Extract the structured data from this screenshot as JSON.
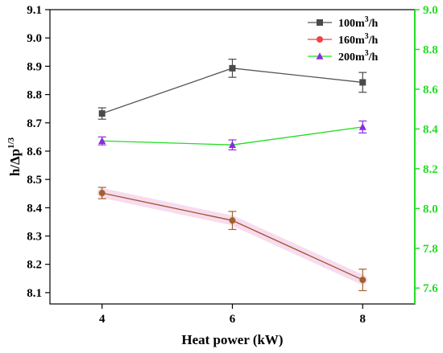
{
  "chart_data": {
    "type": "line",
    "xlabel": "Heat power (kW)",
    "ylabel_left": {
      "base": "h/Δp",
      "sup": "1/3"
    },
    "ylabel_right": "",
    "x": [
      4,
      6,
      8
    ],
    "x_ticks": [
      "4",
      "6",
      "8"
    ],
    "xlim": [
      3.2,
      8.8
    ],
    "y_left": {
      "lim": [
        8.06,
        9.1
      ],
      "ticks": [
        "8.1",
        "8.2",
        "8.3",
        "8.4",
        "8.5",
        "8.6",
        "8.7",
        "8.8",
        "8.9",
        "9.0",
        "9.1"
      ]
    },
    "y_right": {
      "lim": [
        7.52,
        9.0
      ],
      "ticks": [
        "7.6",
        "7.8",
        "8.0",
        "8.2",
        "8.4",
        "8.6",
        "8.8",
        "9.0"
      ],
      "color": "#22dd22"
    },
    "series": [
      {
        "name": "100m3/h",
        "legend_base": "100m",
        "legend_sup": "3",
        "legend_tail": "/h",
        "axis": "left",
        "marker": "square",
        "line_color": "#555555",
        "marker_color": "#4a4a4a",
        "values": [
          8.733,
          8.893,
          8.843
        ],
        "errors": [
          0.02,
          0.032,
          0.035
        ]
      },
      {
        "name": "160m3/h",
        "legend_base": "160m",
        "legend_sup": "3",
        "legend_tail": "/h",
        "axis": "left",
        "marker": "circle",
        "line_color": "#ee4444",
        "marker_color": "#ee4444",
        "plot_line_color": "#a0522d",
        "plot_marker_color": "#a0622d",
        "values": [
          8.452,
          8.355,
          8.145
        ],
        "errors": [
          0.02,
          0.032,
          0.038
        ]
      },
      {
        "name": "200m3/h",
        "legend_base": "200m",
        "legend_sup": "3",
        "legend_tail": "/h",
        "axis": "right",
        "marker": "triangle",
        "line_color": "#22dd22",
        "marker_color": "#8a2be2",
        "values": [
          8.34,
          8.32,
          8.41
        ],
        "errors": [
          0.02,
          0.025,
          0.03
        ]
      }
    ],
    "legend": "top-right",
    "grid": false
  }
}
